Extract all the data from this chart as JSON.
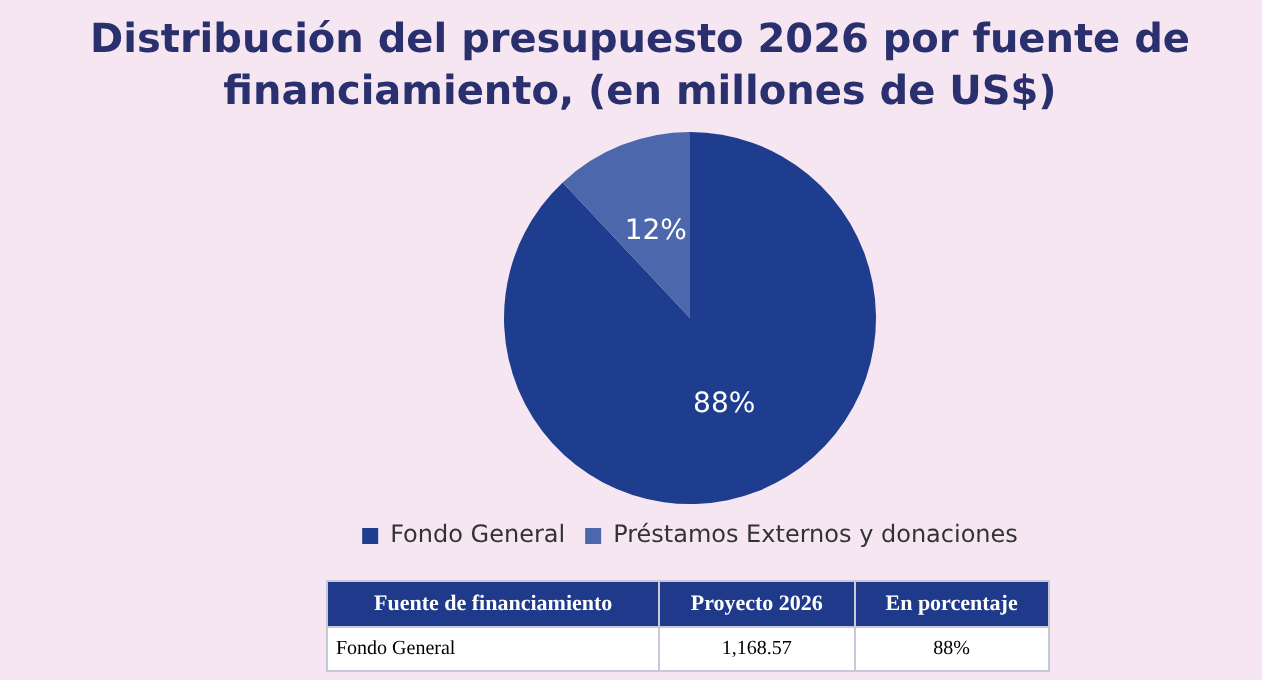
{
  "chart_data": {
    "type": "pie",
    "title": "Distribución del presupuesto 2026 por fuente de financiamiento, (en millones de US$)",
    "categories": [
      "Fondo General",
      "Préstamos Externos y donaciones"
    ],
    "values": [
      88,
      12
    ],
    "colors": [
      "#1f3d8f",
      "#4d67ad"
    ],
    "value_labels": [
      "88%",
      "12%"
    ],
    "legend": "bottom",
    "annotations": [
      "Fuente de financiamiento",
      "Proyecto 2026",
      "En porcentaje",
      "Fondo General",
      "1,168.57",
      "88%"
    ]
  }
}
